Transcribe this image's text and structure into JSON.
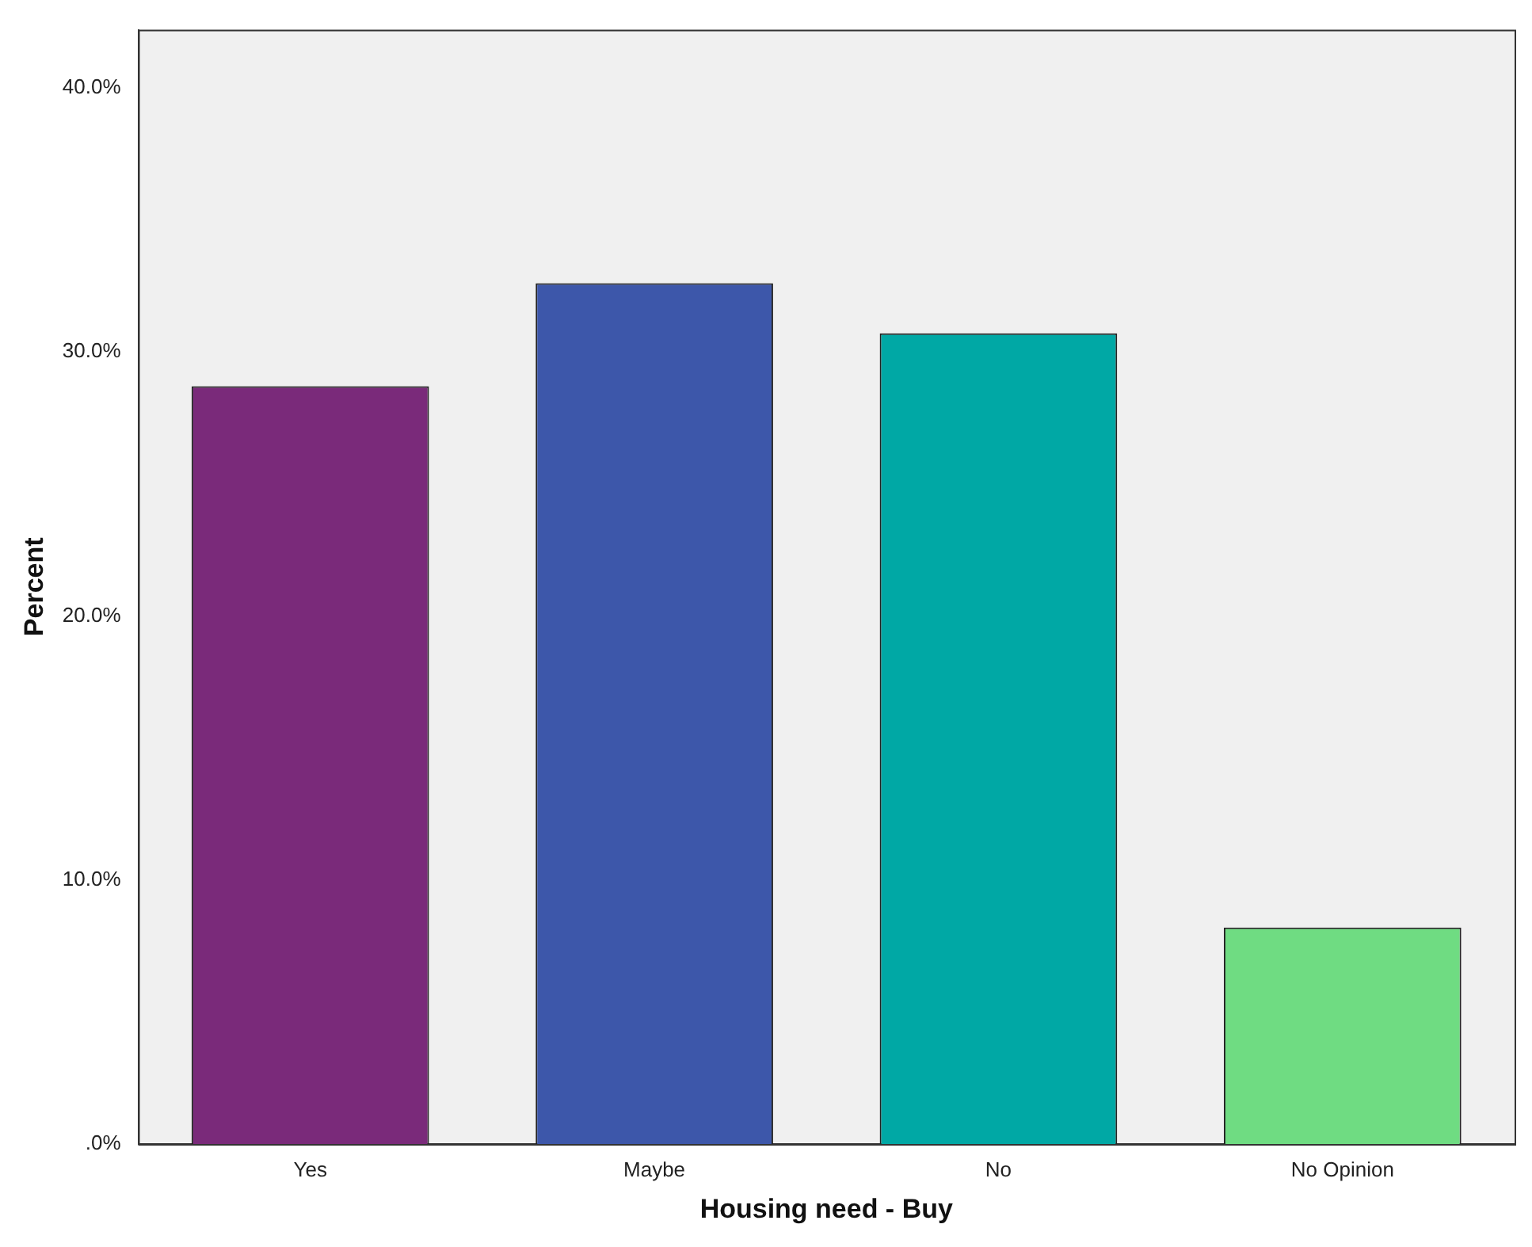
{
  "chart_data": {
    "type": "bar",
    "xlabel": "Housing need - Buy",
    "ylabel": "Percent",
    "categories": [
      "Yes",
      "Maybe",
      "No",
      "No Opinion"
    ],
    "values": [
      28.7,
      32.6,
      30.7,
      8.2
    ],
    "colors": [
      "#7a2a7a",
      "#3d57aa",
      "#00a8a5",
      "#6fdc82"
    ],
    "ylim": [
      0,
      42.2
    ],
    "yticks": [
      {
        "value": 0,
        "label": ".0%"
      },
      {
        "value": 10,
        "label": "10.0%"
      },
      {
        "value": 20,
        "label": "20.0%"
      },
      {
        "value": 30,
        "label": "30.0%"
      },
      {
        "value": 40,
        "label": "40.0%"
      }
    ],
    "grid": false,
    "legend": false
  }
}
